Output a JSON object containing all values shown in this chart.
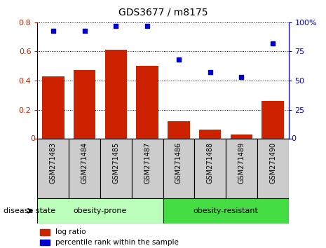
{
  "title": "GDS3677 / m8175",
  "categories": [
    "GSM271483",
    "GSM271484",
    "GSM271485",
    "GSM271487",
    "GSM271486",
    "GSM271488",
    "GSM271489",
    "GSM271490"
  ],
  "log_ratio": [
    0.43,
    0.47,
    0.61,
    0.5,
    0.12,
    0.065,
    0.03,
    0.26
  ],
  "percentile_rank": [
    93,
    93,
    97,
    97,
    68,
    57,
    53,
    82
  ],
  "bar_color": "#cc2200",
  "dot_color": "#0000cc",
  "group1_label": "obesity-prone",
  "group2_label": "obesity-resistant",
  "group1_color": "#bbffbb",
  "group2_color": "#44dd44",
  "ylim_left": [
    0,
    0.8
  ],
  "ylim_right": [
    0,
    100
  ],
  "yticks_left": [
    0,
    0.2,
    0.4,
    0.6,
    0.8
  ],
  "yticks_right": [
    0,
    25,
    50,
    75,
    100
  ],
  "disease_state_label": "disease state",
  "legend_log_ratio": "log ratio",
  "legend_percentile": "percentile rank within the sample",
  "xtick_bg_color": "#cccccc",
  "n_group1": 4,
  "n_group2": 4
}
